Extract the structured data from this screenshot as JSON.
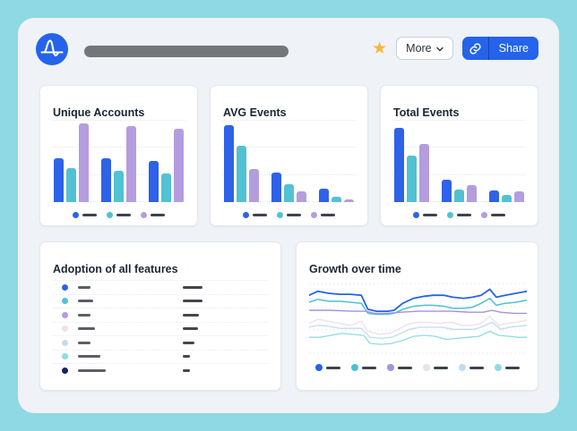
{
  "header": {
    "logo": "amplitude-logo",
    "title_placeholder": "",
    "star_glyph": "★",
    "more_label": "More",
    "share_label": "Share"
  },
  "palette": {
    "bars": [
      "#2d62e9",
      "#52c1d3",
      "#b49ddf"
    ],
    "lines": [
      "#2563eb",
      "#4cc1d3",
      "#a392dd",
      "#efdfea",
      "#bfdcf4",
      "#8edce6"
    ],
    "legend_dash": "#3c434d",
    "star": "#f5b73d",
    "brand_blue": "#2563eb",
    "window_bg": "#eff2f7",
    "page_bg": "#8ed9e3"
  },
  "cards": {
    "unique_accounts": {
      "title": "Unique Accounts",
      "type": "bar",
      "groups": [
        [
          53,
          41,
          96
        ],
        [
          53,
          38,
          92
        ],
        [
          50,
          35,
          89
        ]
      ]
    },
    "avg_events": {
      "title": "AVG Events",
      "type": "bar",
      "groups": [
        [
          93,
          68,
          40
        ],
        [
          36,
          22,
          13
        ],
        [
          16,
          7,
          3
        ]
      ]
    },
    "total_events": {
      "title": "Total Events",
      "type": "bar",
      "groups": [
        [
          90,
          57,
          71
        ],
        [
          27,
          15,
          21
        ],
        [
          14,
          9,
          13
        ]
      ]
    },
    "adoption": {
      "title": "Adoption of all features",
      "type": "table",
      "rows": [
        {
          "dot": "#2d62e9",
          "label_w": 14,
          "value_w": 22
        },
        {
          "dot": "#52c1d3",
          "label_w": 17,
          "value_w": 22
        },
        {
          "dot": "#b49ddf",
          "label_w": 14,
          "value_w": 18
        },
        {
          "dot": "#f0dfeb",
          "label_w": 19,
          "value_w": 17
        },
        {
          "dot": "#bfdcf4",
          "label_w": 14,
          "value_w": 13
        },
        {
          "dot": "#8edce6",
          "label_w": 25,
          "value_w": 8
        },
        {
          "dot": "#16216e",
          "label_w": 31,
          "value_w": 8
        }
      ]
    },
    "growth": {
      "title": "Growth over time",
      "type": "line",
      "series": [
        {
          "color": "#2563eb",
          "w": 1.8,
          "pts": [
            [
              0,
              10
            ],
            [
              4,
              6
            ],
            [
              9,
              8
            ],
            [
              14,
              9
            ],
            [
              19,
              9
            ],
            [
              24,
              10
            ],
            [
              27,
              24
            ],
            [
              31,
              26
            ],
            [
              36,
              26
            ],
            [
              39,
              25
            ],
            [
              43,
              18
            ],
            [
              48,
              13
            ],
            [
              53,
              11
            ],
            [
              57,
              10
            ],
            [
              62,
              10
            ],
            [
              66,
              12
            ],
            [
              71,
              13
            ],
            [
              75,
              12
            ],
            [
              79,
              10
            ],
            [
              83,
              4
            ],
            [
              86,
              12
            ],
            [
              90,
              10
            ],
            [
              95,
              8
            ],
            [
              100,
              6
            ]
          ]
        },
        {
          "color": "#4cc1d3",
          "w": 1.5,
          "pts": [
            [
              0,
              17
            ],
            [
              4,
              14
            ],
            [
              9,
              16
            ],
            [
              14,
              16
            ],
            [
              19,
              17
            ],
            [
              24,
              18
            ],
            [
              27,
              28
            ],
            [
              31,
              29
            ],
            [
              36,
              29
            ],
            [
              39,
              28
            ],
            [
              43,
              24
            ],
            [
              48,
              21
            ],
            [
              53,
              20
            ],
            [
              57,
              20
            ],
            [
              62,
              21
            ],
            [
              66,
              23
            ],
            [
              71,
              23
            ],
            [
              75,
              22
            ],
            [
              79,
              18
            ],
            [
              83,
              13
            ],
            [
              86,
              20
            ],
            [
              90,
              18
            ],
            [
              95,
              17
            ],
            [
              100,
              15
            ]
          ]
        },
        {
          "color": "#a392dd",
          "w": 1.4,
          "pts": [
            [
              0,
              25
            ],
            [
              10,
              25
            ],
            [
              20,
              26
            ],
            [
              26,
              26
            ],
            [
              30,
              28
            ],
            [
              36,
              28
            ],
            [
              42,
              27
            ],
            [
              50,
              26
            ],
            [
              58,
              26
            ],
            [
              66,
              26
            ],
            [
              74,
              27
            ],
            [
              80,
              27
            ],
            [
              84,
              25
            ],
            [
              88,
              27
            ],
            [
              94,
              28
            ],
            [
              100,
              28
            ]
          ]
        },
        {
          "color": "#efdfea",
          "w": 1.3,
          "pts": [
            [
              0,
              38
            ],
            [
              4,
              34
            ],
            [
              9,
              36
            ],
            [
              14,
              38
            ],
            [
              19,
              40
            ],
            [
              24,
              36
            ],
            [
              27,
              46
            ],
            [
              32,
              49
            ],
            [
              37,
              48
            ],
            [
              41,
              44
            ],
            [
              45,
              39
            ],
            [
              50,
              37
            ],
            [
              55,
              37
            ],
            [
              60,
              38
            ],
            [
              65,
              37
            ],
            [
              70,
              40
            ],
            [
              75,
              40
            ],
            [
              79,
              38
            ],
            [
              83,
              31
            ],
            [
              87,
              40
            ],
            [
              91,
              38
            ],
            [
              95,
              37
            ],
            [
              100,
              35
            ]
          ]
        },
        {
          "color": "#bfdcf4",
          "w": 1.3,
          "pts": [
            [
              0,
              42
            ],
            [
              4,
              40
            ],
            [
              9,
              41
            ],
            [
              14,
              43
            ],
            [
              19,
              43
            ],
            [
              24,
              43
            ],
            [
              28,
              52
            ],
            [
              33,
              53
            ],
            [
              38,
              52
            ],
            [
              42,
              48
            ],
            [
              46,
              44
            ],
            [
              51,
              42
            ],
            [
              56,
              42
            ],
            [
              61,
              42
            ],
            [
              66,
              44
            ],
            [
              71,
              44
            ],
            [
              76,
              44
            ],
            [
              80,
              41
            ],
            [
              84,
              37
            ],
            [
              88,
              44
            ],
            [
              92,
              42
            ],
            [
              96,
              41
            ],
            [
              100,
              40
            ]
          ]
        },
        {
          "color": "#8edce6",
          "w": 1.3,
          "pts": [
            [
              0,
              52
            ],
            [
              5,
              52
            ],
            [
              10,
              50
            ],
            [
              15,
              48
            ],
            [
              20,
              49
            ],
            [
              25,
              50
            ],
            [
              28,
              58
            ],
            [
              33,
              59
            ],
            [
              38,
              58
            ],
            [
              43,
              55
            ],
            [
              48,
              51
            ],
            [
              53,
              50
            ],
            [
              58,
              51
            ],
            [
              63,
              54
            ],
            [
              68,
              53
            ],
            [
              73,
              52
            ],
            [
              78,
              51
            ],
            [
              83,
              46
            ],
            [
              87,
              50
            ],
            [
              92,
              51
            ],
            [
              96,
              52
            ],
            [
              100,
              52
            ]
          ]
        }
      ]
    }
  }
}
